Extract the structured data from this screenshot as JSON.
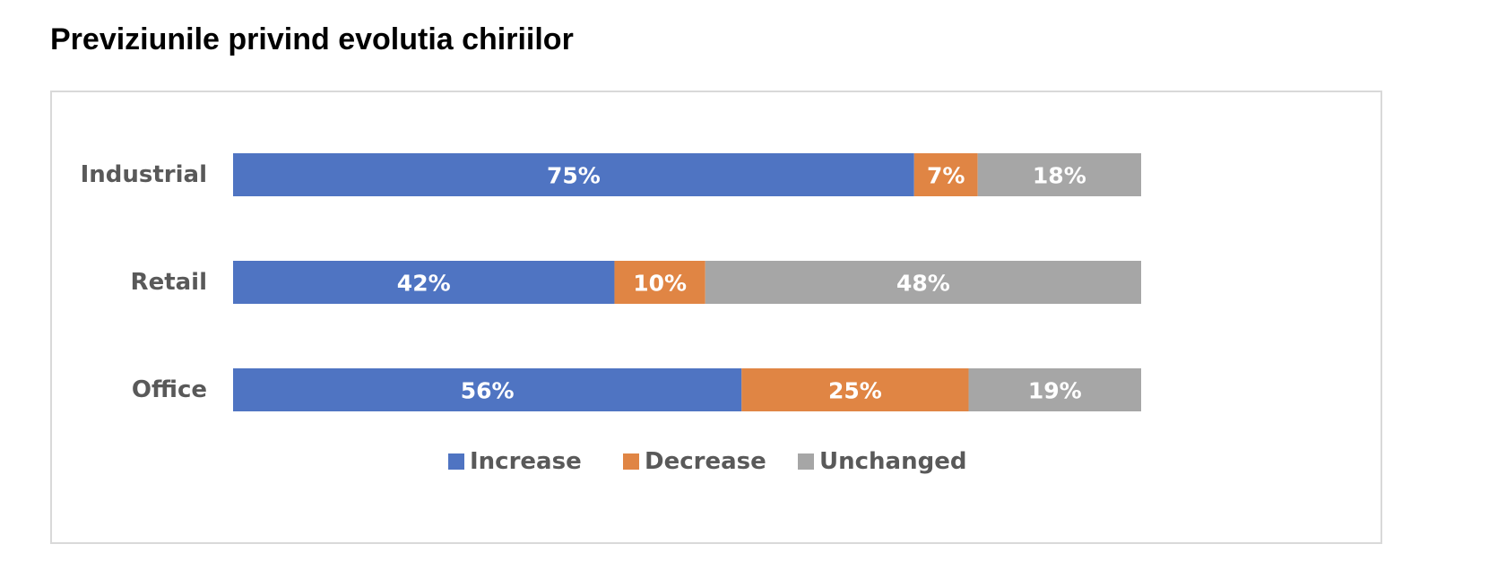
{
  "title": "Previziunile privind evolutia chiriilor",
  "chart_data": {
    "type": "bar",
    "orientation": "horizontal",
    "stacked": true,
    "title": "",
    "xlabel": "",
    "ylabel": "",
    "categories": [
      "Industrial",
      "Retail",
      "Office"
    ],
    "series": [
      {
        "name": "Increase",
        "color": "#4f74c2",
        "values": [
          75,
          42,
          56
        ],
        "labels": [
          "75%",
          "42%",
          "56%"
        ]
      },
      {
        "name": "Decrease",
        "color": "#e08544",
        "values": [
          7,
          10,
          25
        ],
        "labels": [
          "7%",
          "10%",
          "25%"
        ]
      },
      {
        "name": "Unchanged",
        "color": "#a6a6a6",
        "values": [
          18,
          48,
          19
        ],
        "labels": [
          "18%",
          "48%",
          "19%"
        ]
      }
    ],
    "xlim": [
      0,
      100
    ],
    "grid": false,
    "axis_visible": false,
    "legend_position": "bottom"
  }
}
